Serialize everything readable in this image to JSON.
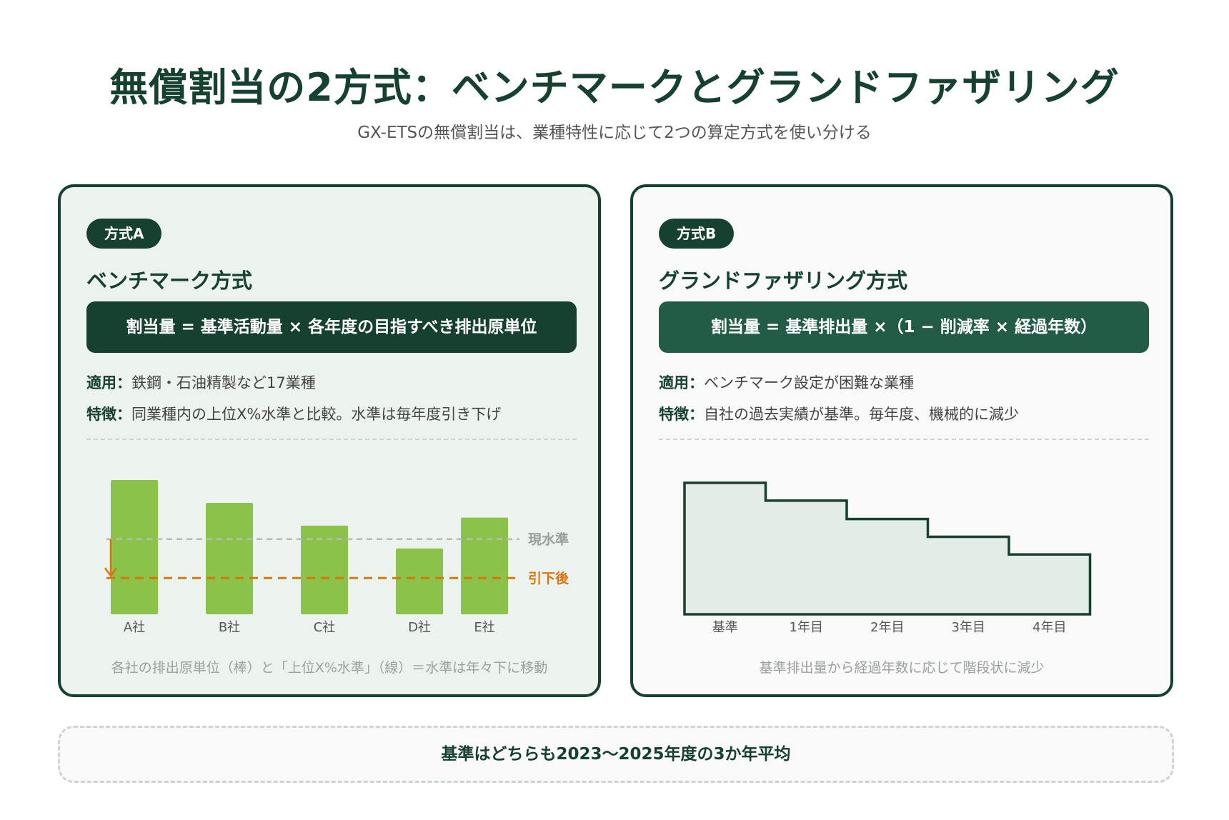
{
  "header": {
    "title": "無償割当の2方式：ベンチマークとグランドファザリング",
    "subtitle": "GX-ETSの無償割当は、業種特性に応じて2つの算定方式を使い分ける"
  },
  "method_a": {
    "badge": "方式A",
    "title": "ベンチマーク方式",
    "formula": "割当量 = 基準活動量 × 各年度の目指すべき排出原単位",
    "applies_label": "適用：",
    "applies_text": "鉄鋼・石油精製など17業種",
    "feature_label": "特徴：",
    "feature_text": "同業種内の上位X%水準と比較。水準は毎年度引き下げ",
    "caption": "各社の排出原単位（棒）と「上位X%水準」（線）＝水準は年々下に移動"
  },
  "method_b": {
    "badge": "方式B",
    "title": "グランドファザリング方式",
    "formula": "割当量 = 基準排出量 ×（1 − 削減率 × 経過年数）",
    "applies_label": "適用：",
    "applies_text": "ベンチマーク設定が困難な業種",
    "feature_label": "特徴：",
    "feature_text": "自社の過去実績が基準。毎年度、機械的に減少",
    "caption": "基準排出量から経過年数に応じて階段状に減少"
  },
  "footer": {
    "text": "基準はどちらも2023〜2025年度の3か年平均"
  },
  "colors": {
    "primary": "#16402f",
    "formula_b": "#225c47",
    "bar": "#8bc34a",
    "current_line": "#b8bbb9",
    "lowered_line": "#d97706",
    "step_fill": "#e3ede7"
  },
  "chart_data": [
    {
      "type": "bar",
      "categories": [
        "A社",
        "B社",
        "C社",
        "D社",
        "E社"
      ],
      "values": [
        100,
        83,
        66,
        49,
        72
      ],
      "lines": [
        {
          "label": "現水準",
          "value": 56
        },
        {
          "label": "引下後",
          "value": 27
        }
      ],
      "ylim": [
        0,
        100
      ]
    },
    {
      "type": "area",
      "step": true,
      "categories": [
        "基準",
        "1年目",
        "2年目",
        "3年目",
        "4年目"
      ],
      "values": [
        100,
        86.5,
        72.5,
        59,
        45.5
      ],
      "ylim": [
        0,
        100
      ]
    }
  ]
}
